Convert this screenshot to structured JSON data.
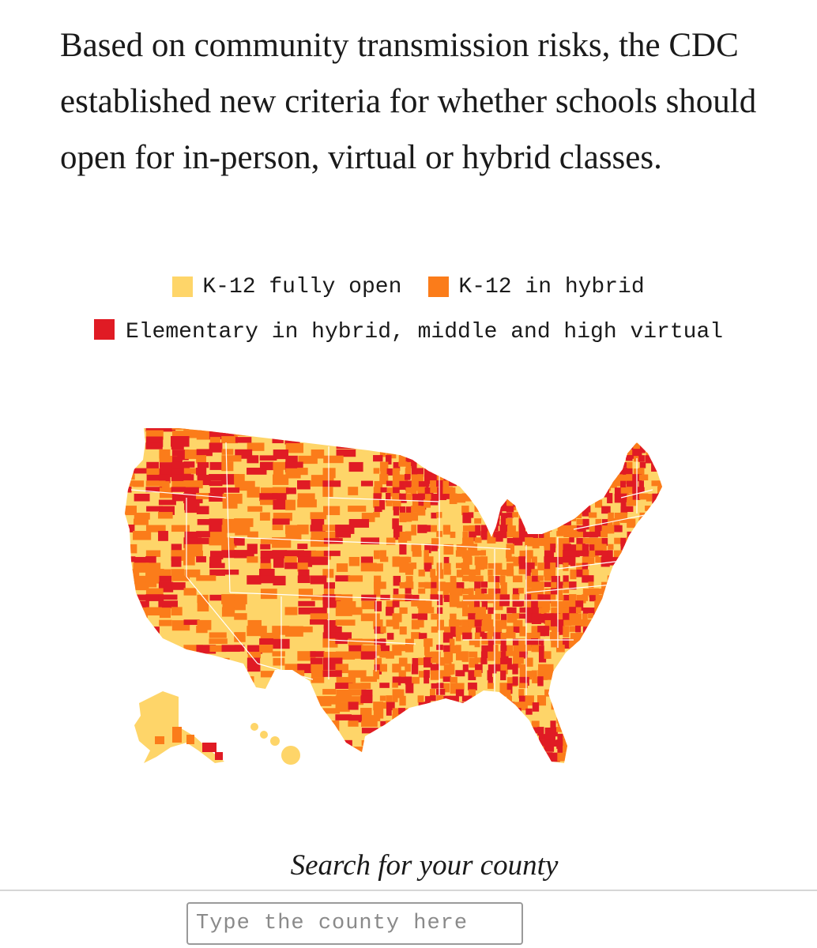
{
  "intro": "Based on community transmission risks, the CDC established new criteria for whether schools should open for in-person, virtual or hybrid classes.",
  "legend": [
    {
      "label": "K-12 fully open",
      "color": "#fed569"
    },
    {
      "label": "K-12 in hybrid",
      "color": "#fb7c1a"
    },
    {
      "label": "Elementary in hybrid, middle and high virtual",
      "color": "#e01b24"
    }
  ],
  "map": {
    "colors": {
      "fully_open": "#fed569",
      "hybrid": "#fb7c1a",
      "virtual": "#e01b24",
      "border": "#ffffff"
    }
  },
  "search": {
    "title": "Search for your county",
    "placeholder": "Type the county here",
    "value": ""
  }
}
